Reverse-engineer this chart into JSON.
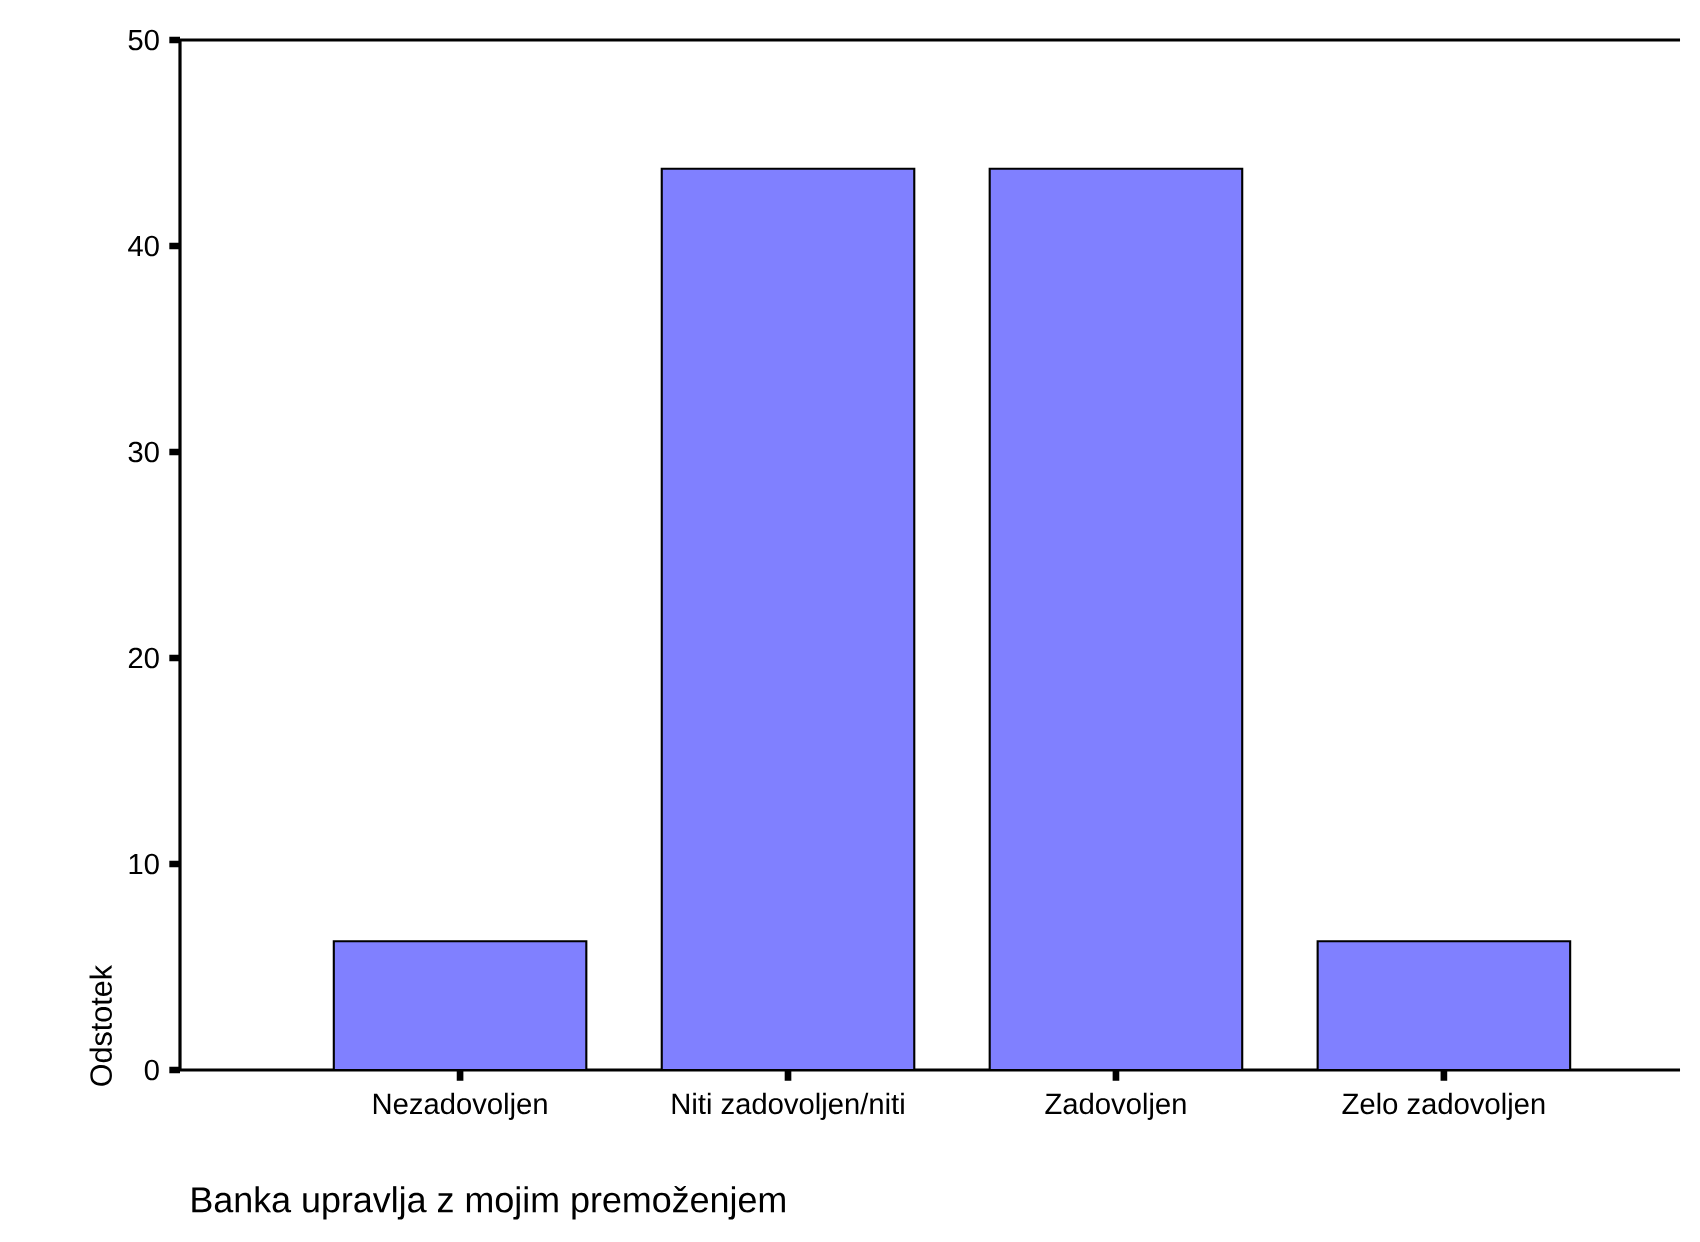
{
  "chart_data": {
    "type": "bar",
    "categories": [
      "Nezadovoljen",
      "Niti zadovoljen/niti",
      "Zadovoljen",
      "Zelo zadovoljen"
    ],
    "values": [
      6.25,
      43.75,
      43.75,
      6.25
    ],
    "color": "#8080ff",
    "xlabel": "Banka upravlja z mojim premoženjem",
    "ylabel": "Odstotek",
    "ylim": [
      0,
      50
    ],
    "yticks": [
      0,
      10,
      20,
      30,
      40,
      50
    ]
  }
}
